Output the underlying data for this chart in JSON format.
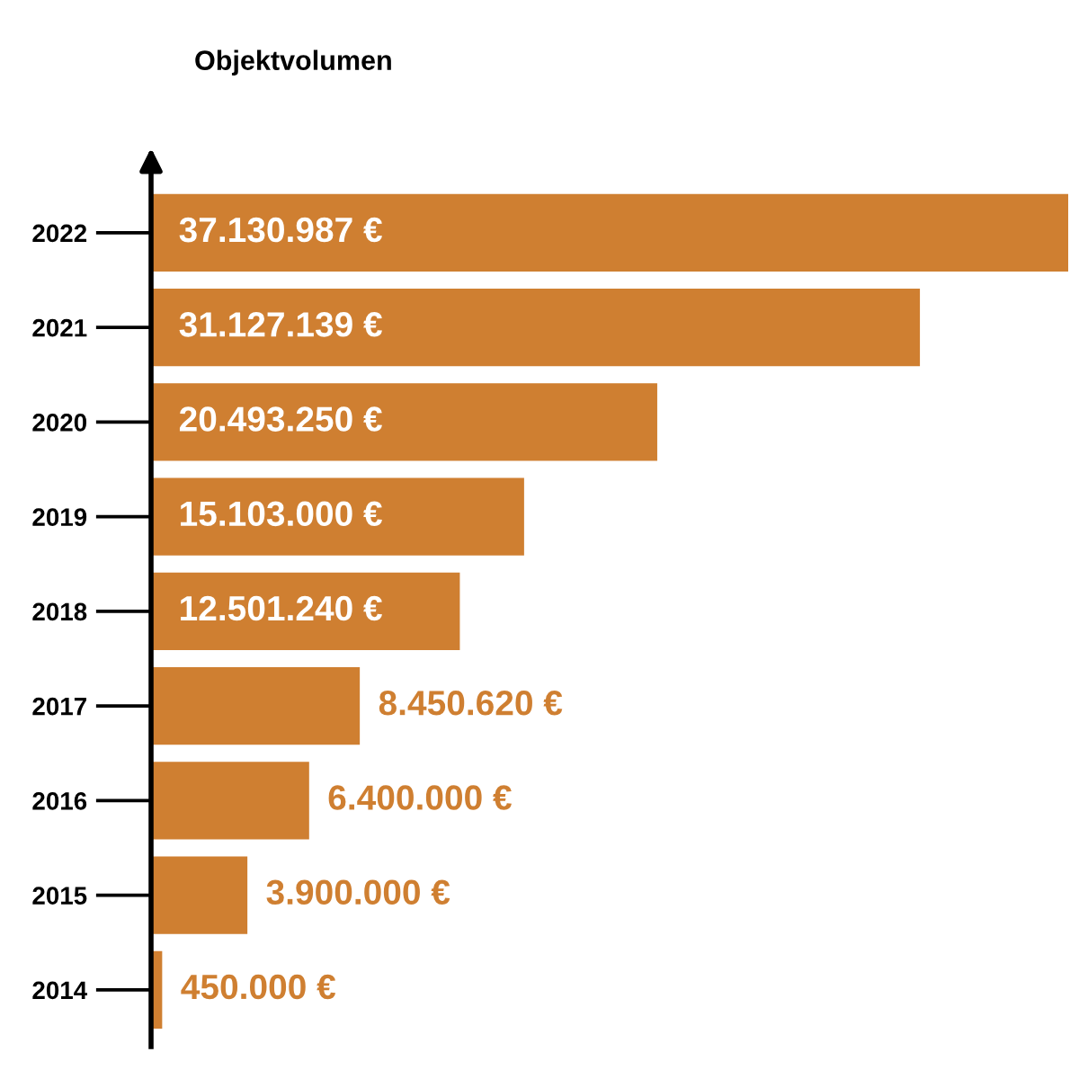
{
  "chart_data": {
    "type": "bar",
    "orientation": "horizontal",
    "title": "Objektvolumen",
    "categories": [
      "2022",
      "2021",
      "2020",
      "2019",
      "2018",
      "2017",
      "2016",
      "2015",
      "2014"
    ],
    "values": [
      37130987,
      31127139,
      20493250,
      15103000,
      12501240,
      8450620,
      6400000,
      3900000,
      450000
    ],
    "value_labels": [
      "37.130.987 €",
      "31.127.139 €",
      "20.493.250 €",
      "15.103.000 €",
      "12.501.240 €",
      "8.450.620 €",
      "6.400.000 €",
      "3.900.000 €",
      "450.000 €"
    ],
    "color": "#cf7f31",
    "grid": false,
    "legend": false,
    "tick_labels": "y"
  }
}
